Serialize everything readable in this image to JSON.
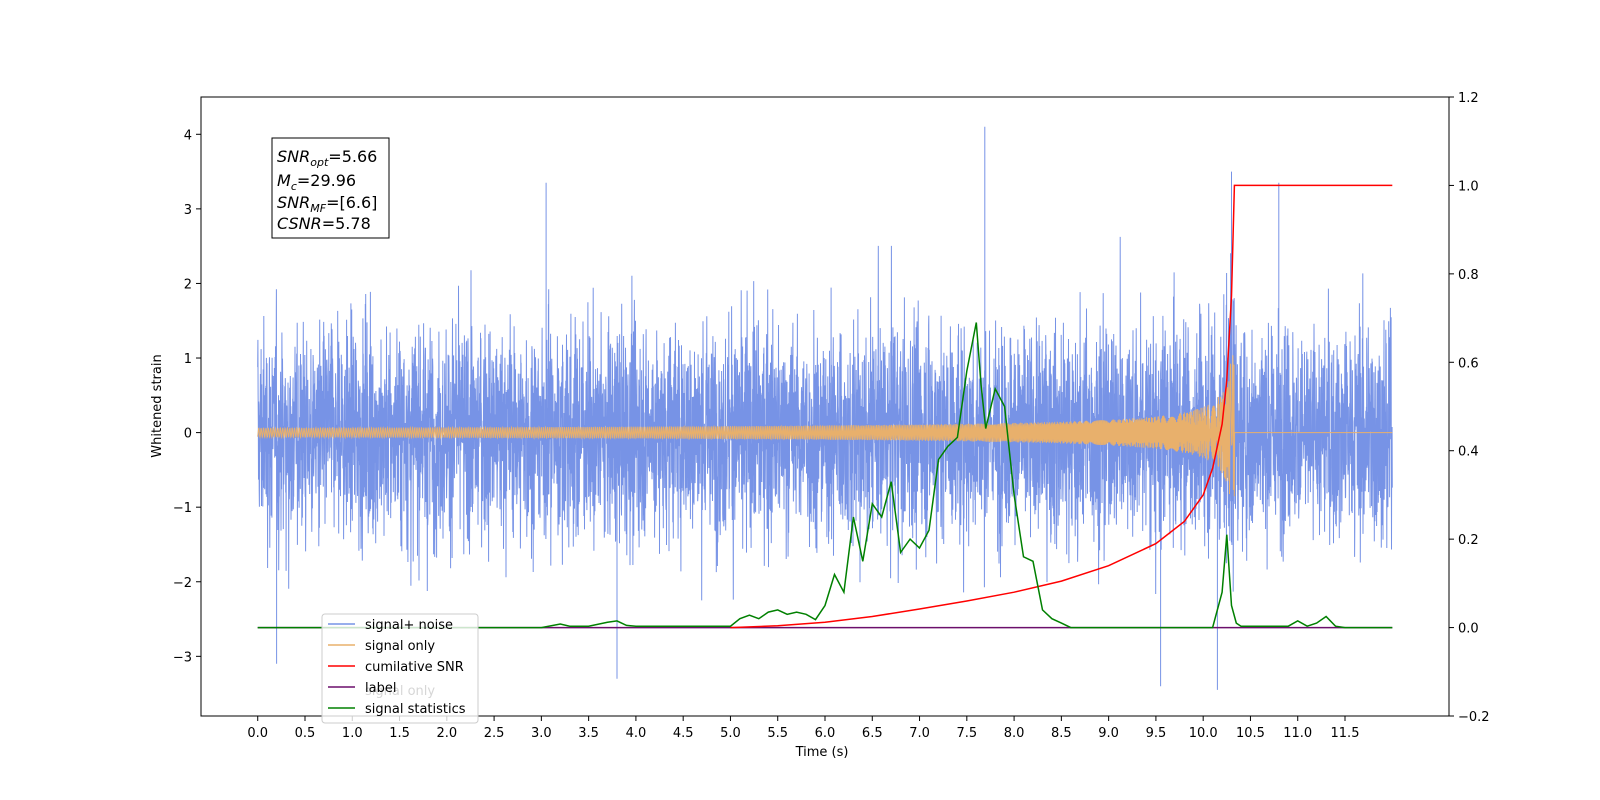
{
  "chart_data": {
    "type": "line",
    "title": "",
    "xlabel": "Time (s)",
    "ylabel": "Whitened strain",
    "xlim": [
      -0.6,
      12.6
    ],
    "ylim": [
      -3.8,
      4.5
    ],
    "y2lim": [
      -0.2,
      1.2
    ],
    "grid": false,
    "legend_position": "lower-left",
    "x_ticks": [
      "0.0",
      "0.5",
      "1.0",
      "1.5",
      "2.0",
      "2.5",
      "3.0",
      "3.5",
      "4.0",
      "4.5",
      "5.0",
      "5.5",
      "6.0",
      "6.5",
      "7.0",
      "7.5",
      "8.0",
      "8.5",
      "9.0",
      "9.5",
      "10.0",
      "10.5",
      "11.0",
      "11.5"
    ],
    "y_ticks": [
      "4",
      "3",
      "2",
      "1",
      "0",
      "−1",
      "−2",
      "−3"
    ],
    "y2_ticks": [
      "1.2",
      "1.0",
      "0.8",
      "0.6",
      "0.4",
      "0.2",
      "0.0",
      "−0.2"
    ],
    "annotation": {
      "snr_opt": "=5.66",
      "mc": "=29.96",
      "snr_mf": "=[6.6]",
      "csnr": "=5.78"
    },
    "series": [
      {
        "name": "signal+ noise",
        "color": "#7793e6",
        "axis": "left",
        "noise_amplitude_typical": 1.6,
        "x_range": [
          0.0,
          12.0
        ],
        "peaks": [
          [
            7.69,
            4.1
          ],
          [
            10.3,
            3.5
          ],
          [
            3.05,
            3.35
          ],
          [
            10.8,
            3.35
          ],
          [
            0.2,
            -3.1
          ],
          [
            3.8,
            -3.3
          ],
          [
            9.55,
            -3.4
          ],
          [
            10.15,
            -3.45
          ]
        ]
      },
      {
        "name": "signal only",
        "color": "#e8b06c",
        "axis": "left",
        "chirp_end": 10.33,
        "chirp_peak_amplitude": 1.05
      },
      {
        "name": "cumilative SNR",
        "color": "#ff0000",
        "axis": "right",
        "x": [
          5.0,
          5.5,
          6.0,
          6.5,
          7.0,
          7.5,
          8.0,
          8.5,
          9.0,
          9.5,
          9.8,
          10.0,
          10.1,
          10.2,
          10.25,
          10.3,
          10.33,
          12.0
        ],
        "values": [
          0.0,
          0.004,
          0.012,
          0.025,
          0.042,
          0.06,
          0.08,
          0.105,
          0.14,
          0.19,
          0.24,
          0.3,
          0.36,
          0.46,
          0.56,
          0.75,
          1.0,
          1.0
        ]
      },
      {
        "name": "label",
        "color": "#6b0f6b",
        "axis": "right",
        "x": [
          0.0,
          12.0
        ],
        "values": [
          0.0,
          0.0
        ]
      },
      {
        "name": "signal statistics",
        "color": "#008000",
        "axis": "right",
        "x": [
          0.0,
          3.0,
          3.2,
          3.3,
          3.5,
          3.7,
          3.8,
          3.9,
          4.0,
          5.0,
          5.1,
          5.2,
          5.3,
          5.4,
          5.5,
          5.6,
          5.7,
          5.8,
          5.9,
          6.0,
          6.1,
          6.2,
          6.3,
          6.4,
          6.5,
          6.6,
          6.7,
          6.8,
          6.9,
          7.0,
          7.1,
          7.2,
          7.3,
          7.4,
          7.5,
          7.6,
          7.65,
          7.7,
          7.8,
          7.9,
          8.0,
          8.1,
          8.2,
          8.3,
          8.4,
          8.5,
          8.6,
          10.1,
          10.2,
          10.25,
          10.3,
          10.35,
          10.4,
          10.5,
          10.9,
          11.0,
          11.1,
          11.2,
          11.3,
          11.4,
          11.5,
          12.0
        ],
        "values": [
          0.0,
          0.0,
          0.008,
          0.003,
          0.003,
          0.012,
          0.015,
          0.005,
          0.003,
          0.003,
          0.02,
          0.028,
          0.02,
          0.035,
          0.04,
          0.03,
          0.035,
          0.03,
          0.018,
          0.05,
          0.12,
          0.08,
          0.25,
          0.15,
          0.28,
          0.25,
          0.33,
          0.17,
          0.2,
          0.18,
          0.22,
          0.38,
          0.41,
          0.43,
          0.58,
          0.69,
          0.55,
          0.45,
          0.54,
          0.5,
          0.3,
          0.16,
          0.15,
          0.04,
          0.02,
          0.01,
          0.0,
          0.0,
          0.08,
          0.21,
          0.05,
          0.01,
          0.003,
          0.003,
          0.003,
          0.015,
          0.003,
          0.01,
          0.025,
          0.003,
          0.0,
          0.0
        ]
      }
    ],
    "legend": [
      "signal+ noise",
      "signal only",
      "cumilative SNR",
      "label",
      "signal statistics"
    ],
    "legend_overlap_text": [
      "signal only"
    ]
  }
}
